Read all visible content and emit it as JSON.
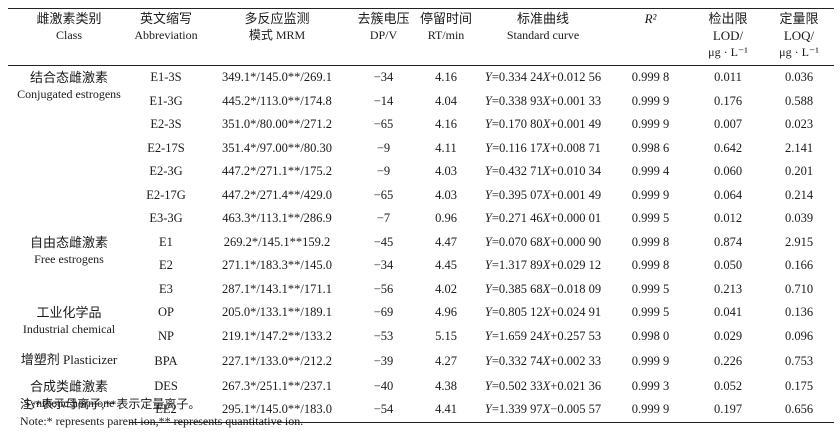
{
  "headers": [
    {
      "cn": "雌激素类别",
      "en": "Class"
    },
    {
      "cn": "英文缩写",
      "en": "Abbreviation"
    },
    {
      "cn": "多反应监测",
      "en": "模式 MRM"
    },
    {
      "cn": "去簇电压",
      "en": "DP/V"
    },
    {
      "cn": "停留时间",
      "en": "RT/min"
    },
    {
      "cn": "标准曲线",
      "en": "Standard curve"
    },
    {
      "cn": "R²",
      "en": ""
    },
    {
      "cn": "检出限 LOD/",
      "en": "μg · L⁻¹"
    },
    {
      "cn": "定量限 LOQ/",
      "en": "μg · L⁻¹"
    }
  ],
  "groups": [
    {
      "cn": "结合态雌激素",
      "en": "Conjugated estrogens"
    },
    {
      "cn": "自由态雌激素",
      "en": "Free estrogens"
    },
    {
      "cn": "工业化学品",
      "en": "Industrial chemical"
    },
    {
      "cn": "增塑剂 Plasticizer",
      "en": ""
    },
    {
      "cn": "合成类雌激素",
      "en": "Synthetic hormone"
    }
  ],
  "rows": [
    {
      "abbr": "E1-3S",
      "mrm": "349.1*/145.0**/269.1",
      "dp": "−34",
      "rt": "4.16",
      "curve_y": "Y",
      "curve_eq": "=0.334 24",
      "curve_x": "X",
      "curve_c": "+0.012 56",
      "r2": "0.999 8",
      "lod": "0.011",
      "loq": "0.036"
    },
    {
      "abbr": "E1-3G",
      "mrm": "445.2*/113.0**/174.8",
      "dp": "−14",
      "rt": "4.04",
      "curve_y": "Y",
      "curve_eq": "=0.338 93",
      "curve_x": "X",
      "curve_c": "+0.001 33",
      "r2": "0.999 9",
      "lod": "0.176",
      "loq": "0.588"
    },
    {
      "abbr": "E2-3S",
      "mrm": "351.0*/80.00**/271.2",
      "dp": "−65",
      "rt": "4.16",
      "curve_y": "Y",
      "curve_eq": "=0.170 80",
      "curve_x": "X",
      "curve_c": "+0.001 49",
      "r2": "0.999 9",
      "lod": "0.007",
      "loq": "0.023"
    },
    {
      "abbr": "E2-17S",
      "mrm": "351.4*/97.00**/80.30",
      "dp": "−9",
      "rt": "4.11",
      "curve_y": "Y",
      "curve_eq": "=0.116 17",
      "curve_x": "X",
      "curve_c": "+0.008 71",
      "r2": "0.998 6",
      "lod": "0.642",
      "loq": "2.141"
    },
    {
      "abbr": "E2-3G",
      "mrm": "447.2*/271.1**/175.2",
      "dp": "−9",
      "rt": "4.03",
      "curve_y": "Y",
      "curve_eq": "=0.432 71",
      "curve_x": "X",
      "curve_c": "+0.010 34",
      "r2": "0.999 4",
      "lod": "0.060",
      "loq": "0.201"
    },
    {
      "abbr": "E2-17G",
      "mrm": "447.2*/271.4**/429.0",
      "dp": "−65",
      "rt": "4.03",
      "curve_y": "Y",
      "curve_eq": "=0.395 07",
      "curve_x": "X",
      "curve_c": "+0.001 49",
      "r2": "0.999 9",
      "lod": "0.064",
      "loq": "0.214"
    },
    {
      "abbr": "E3-3G",
      "mrm": "463.3*/113.1**/286.9",
      "dp": "−7",
      "rt": "0.96",
      "curve_y": "Y",
      "curve_eq": "=0.271 46",
      "curve_x": "X",
      "curve_c": "+0.000 01",
      "r2": "0.999 5",
      "lod": "0.012",
      "loq": "0.039"
    },
    {
      "abbr": "E1",
      "mrm": "269.2*/145.1**159.2",
      "dp": "−45",
      "rt": "4.47",
      "curve_y": "Y",
      "curve_eq": "=0.070 68",
      "curve_x": "X",
      "curve_c": "+0.000 90",
      "r2": "0.999 8",
      "lod": "0.874",
      "loq": "2.915"
    },
    {
      "abbr": "E2",
      "mrm": "271.1*/183.3**/145.0",
      "dp": "−34",
      "rt": "4.45",
      "curve_y": "Y",
      "curve_eq": "=1.317 89",
      "curve_x": "X",
      "curve_c": "+0.029 12",
      "r2": "0.999 8",
      "lod": "0.050",
      "loq": "0.166"
    },
    {
      "abbr": "E3",
      "mrm": "287.1*/143.1**/171.1",
      "dp": "−56",
      "rt": "4.02",
      "curve_y": "Y",
      "curve_eq": "=0.385 68",
      "curve_x": "X",
      "curve_c": "−0.018 09",
      "r2": "0.999 5",
      "lod": "0.213",
      "loq": "0.710"
    },
    {
      "abbr": "OP",
      "mrm": "205.0*/133.1**/189.1",
      "dp": "−69",
      "rt": "4.96",
      "curve_y": "Y",
      "curve_eq": "=0.805 12",
      "curve_x": "X",
      "curve_c": "+0.024 91",
      "r2": "0.999 5",
      "lod": "0.041",
      "loq": "0.136"
    },
    {
      "abbr": "NP",
      "mrm": "219.1*/147.2**/133.2",
      "dp": "−53",
      "rt": "5.15",
      "curve_y": "Y",
      "curve_eq": "=1.659 24",
      "curve_x": "X",
      "curve_c": "+0.257 53",
      "r2": "0.998 0",
      "lod": "0.029",
      "loq": "0.096"
    },
    {
      "abbr": "BPA",
      "mrm": "227.1*/133.0**/212.2",
      "dp": "−39",
      "rt": "4.27",
      "curve_y": "Y",
      "curve_eq": "=0.332 74",
      "curve_x": "X",
      "curve_c": "+0.002 33",
      "r2": "0.999 9",
      "lod": "0.226",
      "loq": "0.753"
    },
    {
      "abbr": "DES",
      "mrm": "267.3*/251.1**/237.1",
      "dp": "−40",
      "rt": "4.38",
      "curve_y": "Y",
      "curve_eq": "=0.502 33",
      "curve_x": "X",
      "curve_c": "+0.021 36",
      "r2": "0.999 3",
      "lod": "0.052",
      "loq": "0.175"
    },
    {
      "abbr": "EE2",
      "mrm": "295.1*/145.0**/183.0",
      "dp": "−54",
      "rt": "4.41",
      "curve_y": "Y",
      "curve_eq": "=1.339 97",
      "curve_x": "X",
      "curve_c": "−0.005 57",
      "r2": "0.999 9",
      "lod": "0.197",
      "loq": "0.656"
    }
  ],
  "notes": {
    "cn": "注:*表示母离子,**表示定量离子。",
    "en": "Note:* represents parent ion,** represents quantitative ion."
  }
}
